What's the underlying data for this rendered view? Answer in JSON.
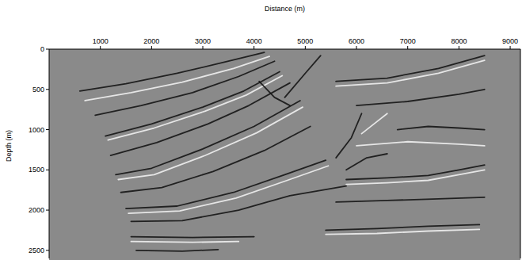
{
  "chart_data": {
    "type": "seismic",
    "x_label": "Distance (m)",
    "y_label": "Depth (m)",
    "xlim": [
      0,
      9200
    ],
    "xticks": [
      1000,
      2000,
      3000,
      4000,
      5000,
      6000,
      7000,
      8000,
      9000
    ],
    "ylim": [
      0,
      2600
    ],
    "yticks": [
      0,
      500,
      1000,
      1500,
      2000,
      2500
    ],
    "series": [
      {
        "color": "#151515",
        "x": [
          600,
          1500,
          2500,
          3500,
          4200
        ],
        "values": [
          520,
          430,
          300,
          150,
          40
        ]
      },
      {
        "color": "#f0f0f0",
        "x": [
          700,
          1600,
          2600,
          3600,
          4300
        ],
        "values": [
          640,
          540,
          410,
          240,
          90
        ]
      },
      {
        "color": "#151515",
        "x": [
          900,
          1800,
          2800,
          3700,
          4400
        ],
        "values": [
          820,
          700,
          540,
          340,
          150
        ]
      },
      {
        "color": "#151515",
        "x": [
          1100,
          2000,
          3000,
          3800,
          4500
        ],
        "values": [
          1080,
          930,
          720,
          520,
          280
        ]
      },
      {
        "color": "#f0f0f0",
        "x": [
          1150,
          2050,
          3050,
          3850,
          4550
        ],
        "values": [
          1130,
          980,
          770,
          570,
          330
        ]
      },
      {
        "color": "#151515",
        "x": [
          1200,
          2100,
          3100,
          3900,
          4700
        ],
        "values": [
          1320,
          1160,
          930,
          700,
          420
        ]
      },
      {
        "color": "#151515",
        "x": [
          1300,
          2000,
          3000,
          4000,
          4900
        ],
        "values": [
          1560,
          1480,
          1240,
          960,
          640
        ]
      },
      {
        "color": "#f0f0f0",
        "x": [
          1350,
          2050,
          3050,
          4050,
          4950
        ],
        "values": [
          1620,
          1560,
          1320,
          1040,
          720
        ]
      },
      {
        "color": "#151515",
        "x": [
          1400,
          2200,
          3200,
          4200,
          5100
        ],
        "values": [
          1780,
          1720,
          1520,
          1260,
          960
        ]
      },
      {
        "color": "#151515",
        "x": [
          1500,
          2500,
          3600,
          4600,
          5400
        ],
        "values": [
          1980,
          1950,
          1780,
          1560,
          1380
        ]
      },
      {
        "color": "#f0f0f0",
        "x": [
          1550,
          2550,
          3650,
          4650,
          5450
        ],
        "values": [
          2040,
          2010,
          1850,
          1630,
          1450
        ]
      },
      {
        "color": "#151515",
        "x": [
          1600,
          2600,
          3700,
          4700,
          5800
        ],
        "values": [
          2140,
          2130,
          2000,
          1820,
          1700
        ]
      },
      {
        "color": "#151515",
        "x": [
          1600,
          2800,
          4000
        ],
        "values": [
          2330,
          2340,
          2330
        ]
      },
      {
        "color": "#f0f0f0",
        "x": [
          1600,
          2800,
          3700
        ],
        "values": [
          2390,
          2400,
          2390
        ]
      },
      {
        "color": "#151515",
        "x": [
          1700,
          2600,
          3300
        ],
        "values": [
          2500,
          2510,
          2490
        ]
      },
      {
        "color": "#151515",
        "x": [
          5600,
          6600,
          7600,
          8500
        ],
        "values": [
          400,
          360,
          240,
          80
        ]
      },
      {
        "color": "#f0f0f0",
        "x": [
          5600,
          6600,
          7600,
          8500
        ],
        "values": [
          460,
          420,
          300,
          140
        ]
      },
      {
        "color": "#151515",
        "x": [
          6000,
          7000,
          8000,
          8500
        ],
        "values": [
          700,
          650,
          560,
          500
        ]
      },
      {
        "color": "#151515",
        "x": [
          6800,
          7400,
          8000,
          8500
        ],
        "values": [
          1000,
          960,
          980,
          1000
        ]
      },
      {
        "color": "#f0f0f0",
        "x": [
          6000,
          7000,
          8000,
          8500
        ],
        "values": [
          1200,
          1150,
          1180,
          1200
        ]
      },
      {
        "color": "#151515",
        "x": [
          5800,
          6600,
          7400,
          8000,
          8500
        ],
        "values": [
          1620,
          1600,
          1570,
          1500,
          1440
        ]
      },
      {
        "color": "#f0f0f0",
        "x": [
          5800,
          6600,
          7400,
          8000,
          8500
        ],
        "values": [
          1680,
          1660,
          1630,
          1560,
          1500
        ]
      },
      {
        "color": "#151515",
        "x": [
          5600,
          6600,
          7600,
          8500
        ],
        "values": [
          1900,
          1880,
          1860,
          1840
        ]
      },
      {
        "color": "#151515",
        "x": [
          5400,
          6400,
          7400,
          8400
        ],
        "values": [
          2250,
          2230,
          2200,
          2180
        ]
      },
      {
        "color": "#f0f0f0",
        "x": [
          5400,
          6400,
          7400,
          8400
        ],
        "values": [
          2300,
          2290,
          2260,
          2240
        ]
      },
      {
        "color": "#151515",
        "x": [
          4100,
          4400,
          4700
        ],
        "values": [
          400,
          600,
          700
        ]
      },
      {
        "color": "#151515",
        "x": [
          4600,
          5000,
          5300
        ],
        "values": [
          600,
          300,
          80
        ]
      },
      {
        "color": "#151515",
        "x": [
          5600,
          5900,
          6100
        ],
        "values": [
          1350,
          1100,
          800
        ]
      },
      {
        "color": "#f0f0f0",
        "x": [
          6100,
          6400,
          6600
        ],
        "values": [
          1050,
          900,
          800
        ]
      },
      {
        "color": "#151515",
        "x": [
          5800,
          6200,
          6600
        ],
        "values": [
          1500,
          1350,
          1300
        ]
      }
    ]
  }
}
